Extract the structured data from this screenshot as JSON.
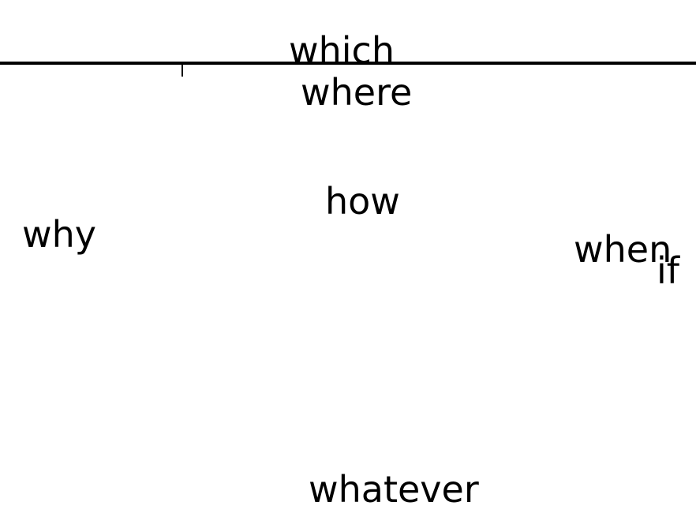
{
  "words": {
    "which": "which",
    "where": "where",
    "how": "how",
    "why": "why",
    "when": "when",
    "if": "if",
    "whatever": "whatever"
  },
  "colors": {
    "background": "#ffffff",
    "ink": "#000000"
  }
}
